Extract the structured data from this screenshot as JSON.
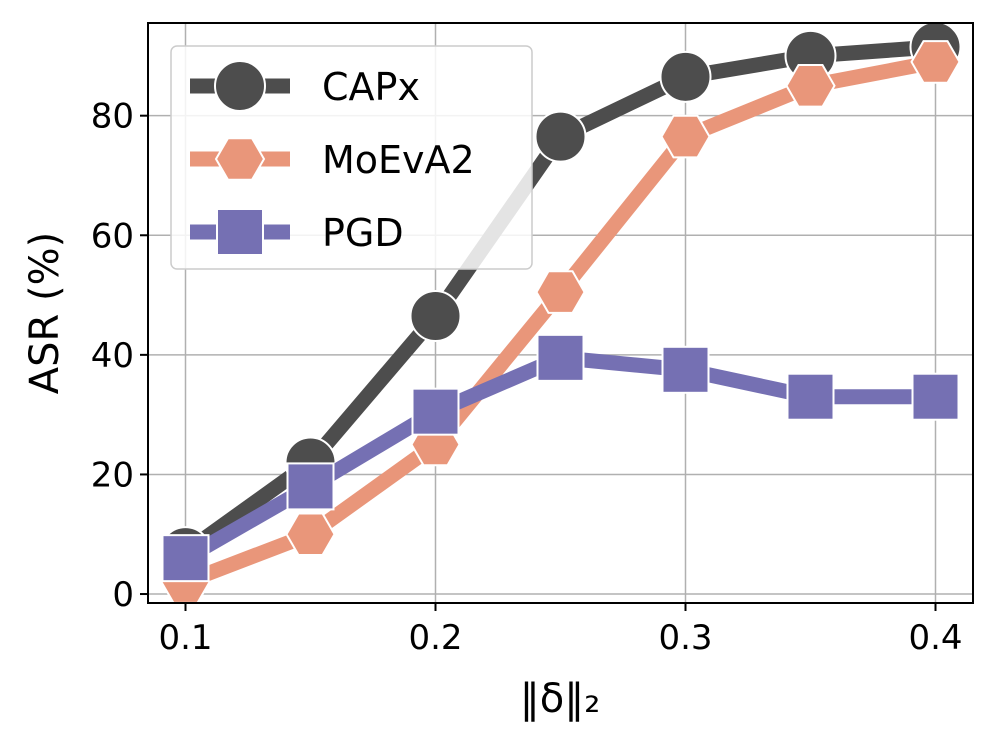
{
  "chart_data": {
    "type": "line",
    "xlabel": "‖δ‖₂",
    "ylabel": "ASR (%)",
    "x": [
      0.1,
      0.15,
      0.2,
      0.25,
      0.3,
      0.35,
      0.4
    ],
    "xticks": [
      "0.1",
      "0.2",
      "0.3",
      "0.4"
    ],
    "xtick_values": [
      0.1,
      0.2,
      0.3,
      0.4
    ],
    "yticks": [
      "0",
      "20",
      "40",
      "60",
      "80"
    ],
    "ytick_values": [
      0,
      20,
      40,
      60,
      80
    ],
    "xlim": [
      0.085,
      0.415
    ],
    "ylim": [
      -1.5,
      95.5
    ],
    "grid": true,
    "legend_position": "upper-left",
    "series": [
      {
        "name": "CAPx",
        "values": [
          7,
          22,
          46.5,
          76.5,
          86.5,
          90,
          91.5
        ],
        "color": "#4d4d4d",
        "marker": "circle"
      },
      {
        "name": "MoEvA2",
        "values": [
          2,
          10,
          25,
          50.5,
          76.5,
          85,
          89
        ],
        "color": "#e9967a",
        "marker": "hexagon"
      },
      {
        "name": "PGD",
        "values": [
          6,
          18,
          30.5,
          39.5,
          37.5,
          33,
          33
        ],
        "color": "#7570b3",
        "marker": "square"
      }
    ]
  }
}
